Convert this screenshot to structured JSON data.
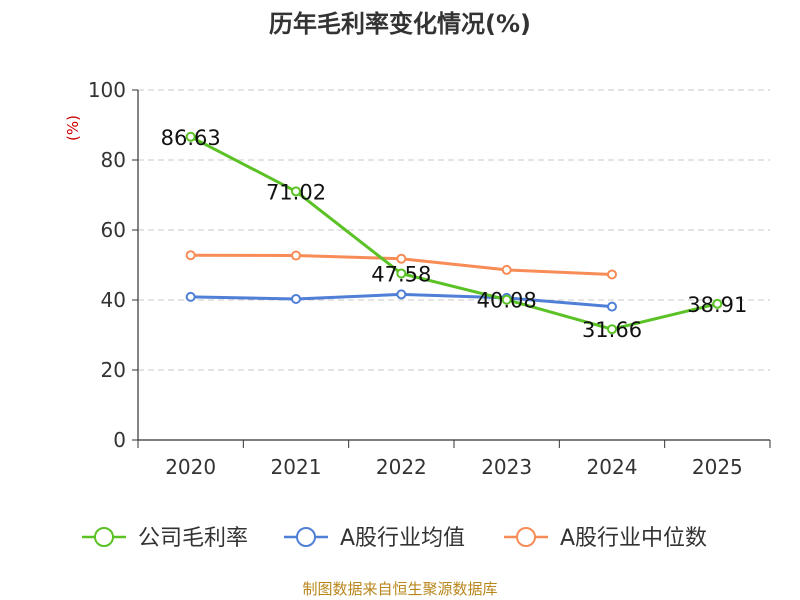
{
  "chart_data": {
    "type": "line",
    "title": "历年毛利率变化情况(%)",
    "ylabel": "(%)",
    "xlabel": "",
    "ylim": [
      0,
      100
    ],
    "yticks": [
      0,
      20,
      40,
      60,
      80,
      100
    ],
    "categories": [
      "2020",
      "2021",
      "2022",
      "2023",
      "2024",
      "2025"
    ],
    "series": [
      {
        "name": "公司毛利率",
        "color": "#5bc226",
        "values": [
          86.63,
          71.02,
          47.58,
          40.08,
          31.66,
          38.91
        ],
        "labels": [
          "86.63",
          "71.02",
          "47.58",
          "40.08",
          "31.66",
          "38.91"
        ]
      },
      {
        "name": "A股行业均值",
        "color": "#4f7fd6",
        "values": [
          40.9,
          40.3,
          41.6,
          40.6,
          38.1,
          null
        ]
      },
      {
        "name": "A股行业中位数",
        "color": "#f78c56",
        "values": [
          52.8,
          52.7,
          51.8,
          48.6,
          47.3,
          null
        ]
      }
    ],
    "legend_position": "bottom",
    "grid": true,
    "source": "制图数据来自恒生聚源数据库"
  }
}
